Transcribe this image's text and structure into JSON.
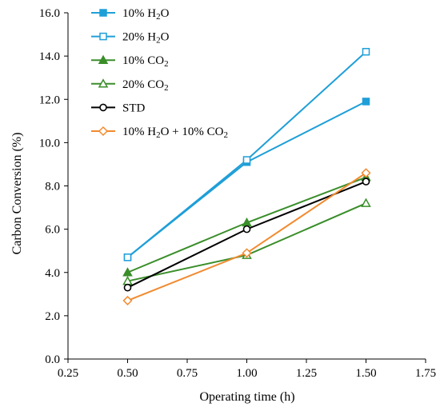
{
  "chart_data": {
    "type": "line",
    "xlabel": "Operating time (h)",
    "ylabel": "Carbon Conversion (%)",
    "xlim": [
      0.25,
      1.75
    ],
    "ylim": [
      0.0,
      16.0
    ],
    "x_ticks": [
      "0.25",
      "0.50",
      "0.75",
      "1.00",
      "1.25",
      "1.50",
      "1.75"
    ],
    "y_ticks": [
      "0.0",
      "2.0",
      "4.0",
      "6.0",
      "8.0",
      "10.0",
      "12.0",
      "14.0",
      "16.0"
    ],
    "grid": false,
    "legend_position": "top-left",
    "x": [
      0.5,
      1.0,
      1.5
    ],
    "series": [
      {
        "name": "10% H2O",
        "legend_parts": [
          {
            "t": "10% H"
          },
          {
            "t": "2",
            "sub": true
          },
          {
            "t": "O"
          }
        ],
        "values": [
          4.7,
          9.1,
          11.9
        ],
        "color": "#1f9fd8",
        "marker": "square-filled"
      },
      {
        "name": "20% H2O",
        "legend_parts": [
          {
            "t": "20% H"
          },
          {
            "t": "2",
            "sub": true
          },
          {
            "t": "O"
          }
        ],
        "values": [
          4.7,
          9.2,
          14.2
        ],
        "color": "#1f9fd8",
        "marker": "square-open"
      },
      {
        "name": "10% CO2",
        "legend_parts": [
          {
            "t": "10% CO"
          },
          {
            "t": "2",
            "sub": true
          }
        ],
        "values": [
          4.0,
          6.3,
          8.4
        ],
        "color": "#3a8e2a",
        "marker": "triangle-filled"
      },
      {
        "name": "20% CO2",
        "legend_parts": [
          {
            "t": "20%  CO"
          },
          {
            "t": "2",
            "sub": true
          }
        ],
        "values": [
          3.6,
          4.8,
          7.2
        ],
        "color": "#3a8e2a",
        "marker": "triangle-open"
      },
      {
        "name": "STD",
        "legend_parts": [
          {
            "t": "STD"
          }
        ],
        "values": [
          3.3,
          6.0,
          8.2
        ],
        "color": "#000000",
        "marker": "circle-open"
      },
      {
        "name": "10% H2O + 10% CO2",
        "legend_parts": [
          {
            "t": "10% H"
          },
          {
            "t": "2",
            "sub": true
          },
          {
            "t": "O   + 10% CO"
          },
          {
            "t": "2",
            "sub": true
          }
        ],
        "values": [
          2.7,
          4.9,
          8.6
        ],
        "color": "#f28a2e",
        "marker": "diamond-open"
      }
    ]
  }
}
